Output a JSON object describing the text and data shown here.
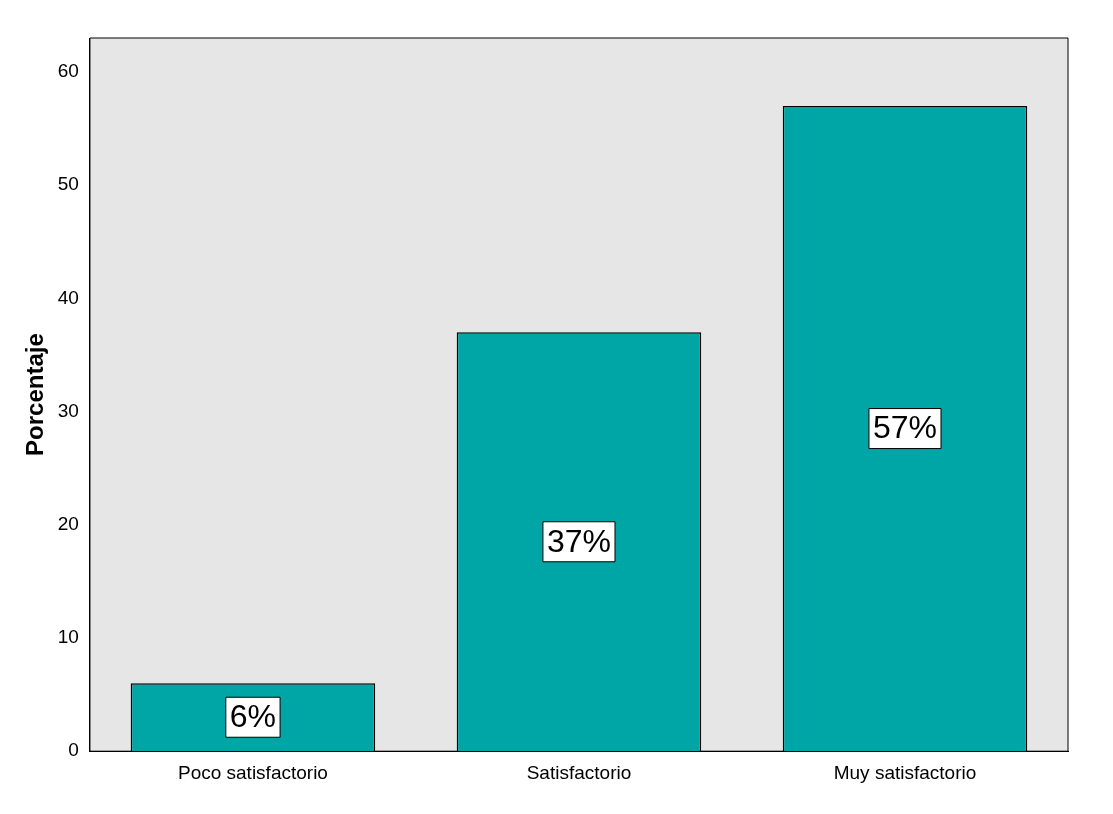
{
  "chart_data": {
    "type": "bar",
    "ylabel": "Porcentaje",
    "categories": [
      "Poco satisfactorio",
      "Satisfactorio",
      "Muy satisfactorio"
    ],
    "values": [
      6,
      37,
      57
    ],
    "color": "#00a5a5",
    "value_labels": [
      "6%",
      "37%",
      "57%"
    ],
    "ylim": [
      0,
      63
    ],
    "yticks": [
      0,
      10,
      20,
      30,
      40,
      50,
      60
    ],
    "grid": false,
    "legend": false
  }
}
